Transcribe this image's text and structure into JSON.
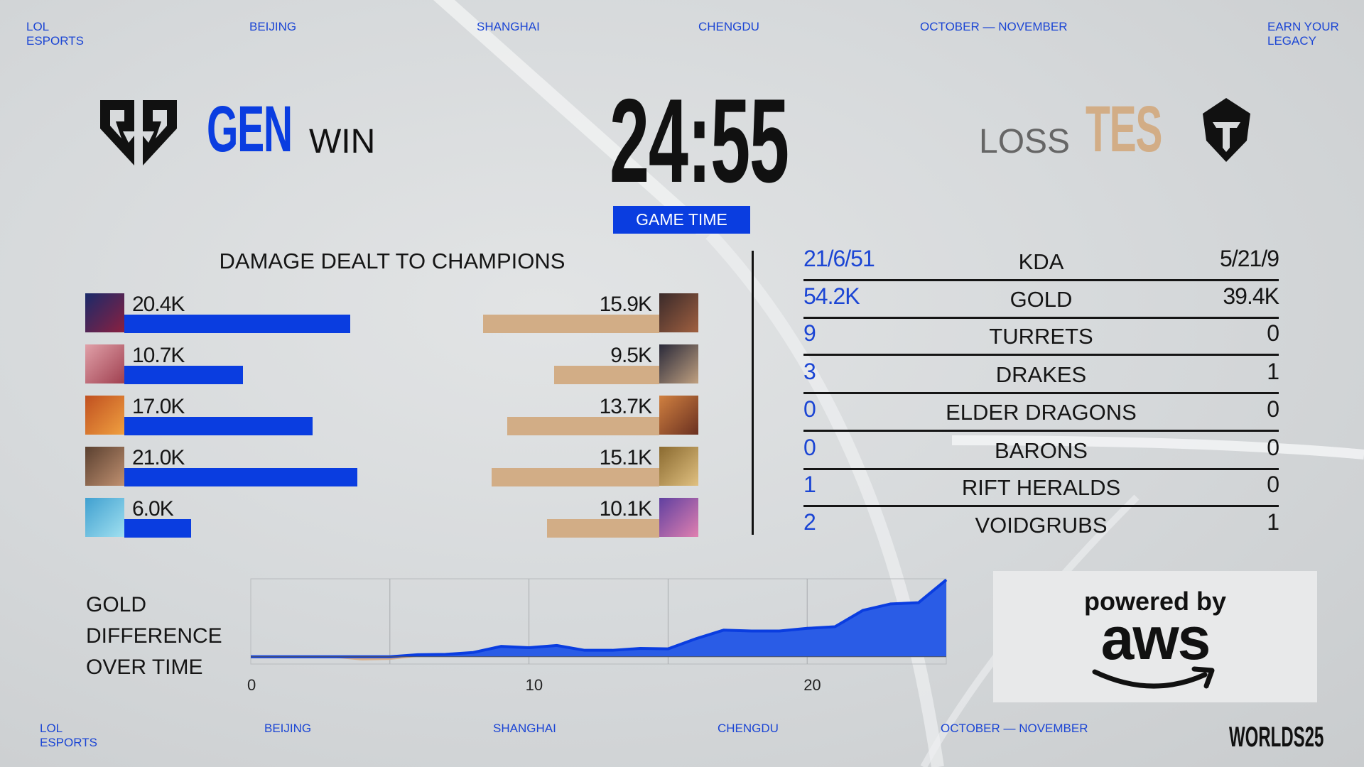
{
  "top_nav": [
    "LOL\nESPORTS",
    "BEIJING",
    "SHANGHAI",
    "CHENGDU",
    "OCTOBER — NOVEMBER",
    "EARN YOUR\nLEGACY"
  ],
  "bottom_nav": [
    "LOL\nESPORTS",
    "BEIJING",
    "SHANGHAI",
    "CHENGDU",
    "OCTOBER — NOVEMBER"
  ],
  "worlds_logo": "WORLDS 25",
  "team_left": {
    "name": "GEN",
    "result": "WIN",
    "color": "#0a3de0",
    "logo": "gen-g-logo-icon"
  },
  "team_right": {
    "name": "TES",
    "result": "LOSS",
    "color": "#d2ad86",
    "logo": "tes-logo-icon"
  },
  "timer": "24:55",
  "timer_label": "GAME TIME",
  "damage": {
    "title": "DAMAGE DEALT TO CHAMPIONS",
    "left": [
      {
        "label": "20.4K",
        "value": 20.4
      },
      {
        "label": "10.7K",
        "value": 10.7
      },
      {
        "label": "17.0K",
        "value": 17.0
      },
      {
        "label": "21.0K",
        "value": 21.0
      },
      {
        "label": "6.0K",
        "value": 6.0
      }
    ],
    "right": [
      {
        "label": "15.9K",
        "value": 15.9
      },
      {
        "label": "9.5K",
        "value": 9.5
      },
      {
        "label": "13.7K",
        "value": 13.7
      },
      {
        "label": "15.1K",
        "value": 15.1
      },
      {
        "label": "10.1K",
        "value": 10.1
      }
    ]
  },
  "stats": [
    {
      "left": "21/6/51",
      "label": "KDA",
      "right": "5/21/9"
    },
    {
      "left": "54.2K",
      "label": "GOLD",
      "right": "39.4K"
    },
    {
      "left": "9",
      "label": "TURRETS",
      "right": "0"
    },
    {
      "left": "3",
      "label": "DRAKES",
      "right": "1"
    },
    {
      "left": "0",
      "label": "ELDER DRAGONS",
      "right": "0"
    },
    {
      "left": "0",
      "label": "BARONS",
      "right": "0"
    },
    {
      "left": "1",
      "label": "RIFT HERALDS",
      "right": "0"
    },
    {
      "left": "2",
      "label": "VOIDGRUBS",
      "right": "1"
    }
  ],
  "gold_chart": {
    "title_lines": [
      "GOLD",
      "DIFFERENCE",
      "OVER TIME"
    ],
    "chart_data": {
      "type": "area",
      "x": [
        0,
        1,
        2,
        3,
        4,
        5,
        6,
        7,
        8,
        9,
        10,
        11,
        12,
        13,
        14,
        15,
        16,
        17,
        18,
        19,
        20,
        21,
        22,
        23,
        24,
        25
      ],
      "y": [
        0,
        -50,
        -100,
        -200,
        -700,
        -600,
        400,
        460,
        830,
        1990,
        1750,
        2170,
        1240,
        1240,
        1610,
        1520,
        3470,
        5130,
        4950,
        4950,
        5460,
        5780,
        8920,
        10170,
        10400,
        14800
      ],
      "xlim": [
        0,
        25
      ],
      "ylim": [
        -1400,
        15000
      ],
      "xticks": [
        0,
        10,
        20
      ],
      "grid_interval": 5,
      "positive_color": "#0a3de0",
      "negative_color": "#d9b08a"
    }
  },
  "sponsor": {
    "line1": "powered by",
    "line2": "aws"
  }
}
